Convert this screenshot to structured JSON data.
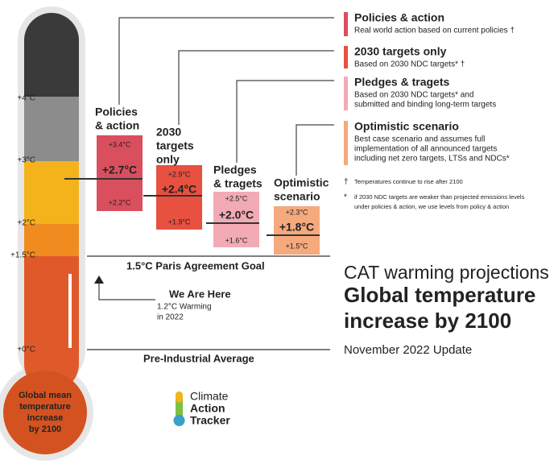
{
  "scale": {
    "labels": [
      "+4°C",
      "+3°C",
      "+2°C",
      "+1.5°C",
      "+0°C"
    ]
  },
  "scenarios": [
    {
      "label_lines": [
        "Policies",
        "& action"
      ],
      "high": "+3.4°C",
      "mid": "+2.7°C",
      "low": "+2.2°C"
    },
    {
      "label_lines": [
        "2030",
        "targets",
        "only"
      ],
      "high": "+2.9°C",
      "mid": "+2.4°C",
      "low": "+1.9°C"
    },
    {
      "label_lines": [
        "Pledges",
        "& tragets"
      ],
      "high": "+2.5°C",
      "mid": "+2.0°C",
      "low": "+1.6°C"
    },
    {
      "label_lines": [
        "Optimistic",
        "scenario"
      ],
      "high": "+2.3°C",
      "mid": "+1.8°C",
      "low": "+1.5°C"
    }
  ],
  "legend": [
    {
      "title": "Policies & action",
      "description_lines": [
        "Real world action based on current policies †"
      ]
    },
    {
      "title": "2030 targets only",
      "description_lines": [
        "Based on 2030 NDC targets* †"
      ]
    },
    {
      "title": "Pledges & tragets",
      "description_lines": [
        "Based on 2030 NDC targets* and",
        "submitted and binding long-term targets"
      ]
    },
    {
      "title": "Optimistic scenario",
      "description_lines": [
        "Best case scenario and assumes full",
        "implementation of all announced targets",
        "including net zero targets, LTSs and NDCs*"
      ]
    }
  ],
  "notes": [
    {
      "symbol": "†",
      "lines": [
        "Temperatures continue to rise after 2100"
      ]
    },
    {
      "symbol": "*",
      "lines": [
        "if 2030 NDC targets are weaker than projected emissions levels",
        "under policies & action, we use levels from policy & action"
      ]
    }
  ],
  "goal_label": "1.5°C Paris Agreement Goal",
  "baseline_label": "Pre-Industrial Average",
  "here": {
    "title": "We Are Here",
    "lines": [
      "1.2°C Warming",
      "in 2022"
    ]
  },
  "heading": {
    "kicker": "CAT warming projections",
    "title_lines": [
      "Global temperature",
      "increase by 2100"
    ],
    "subtitle": "November 2022 Update"
  },
  "bulb_lines": [
    "Global mean",
    "temperature",
    "increase",
    "by 2100"
  ],
  "logo_lines": [
    "Climate",
    "Action",
    "Tracker"
  ]
}
